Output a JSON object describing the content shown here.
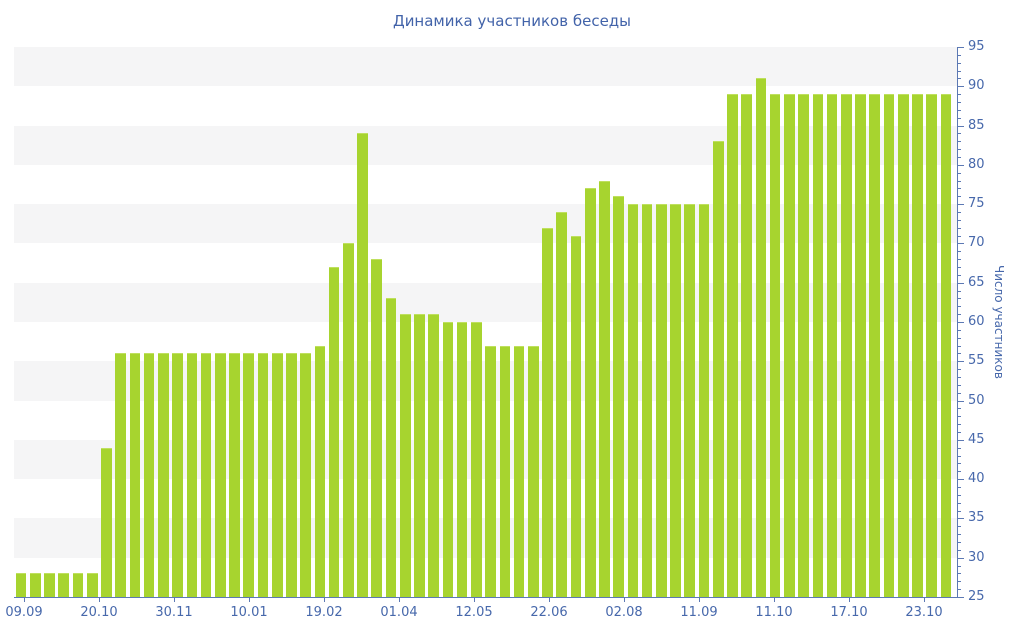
{
  "chart_data": {
    "type": "bar",
    "title": "Динамика участников беседы",
    "xlabel": "",
    "ylabel": "Число участников",
    "ylim": [
      25,
      95
    ],
    "y_major_tick_step": 5,
    "y_minor_tick_step": 1,
    "y_ticks": [
      25,
      30,
      35,
      40,
      45,
      50,
      55,
      60,
      65,
      70,
      75,
      80,
      85,
      90,
      95
    ],
    "grid": "alternating horizontal bands",
    "legend": "none",
    "x_tick_labels": [
      "09.09",
      "20.10",
      "30.11",
      "10.01",
      "19.02",
      "01.04",
      "12.05",
      "22.06",
      "02.08",
      "11.09",
      "11.10",
      "17.10",
      "23.10"
    ],
    "values": [
      28,
      28,
      28,
      28,
      28,
      28,
      44,
      56,
      56,
      56,
      56,
      56,
      56,
      56,
      56,
      56,
      56,
      56,
      56,
      56,
      56,
      57,
      67,
      70,
      84,
      68,
      63,
      61,
      61,
      61,
      60,
      60,
      60,
      57,
      57,
      57,
      57,
      72,
      74,
      71,
      77,
      78,
      76,
      75,
      75,
      75,
      75,
      75,
      75,
      83,
      89,
      89,
      91,
      89,
      89,
      89,
      89,
      89,
      89,
      89,
      89,
      89,
      89,
      89,
      89,
      89
    ],
    "colors": {
      "bar": "#a7d42f",
      "bar_edge": "#bfe05e",
      "axis_line": "#5c79b4",
      "tick_label": "#4768ab",
      "title": "#4263a9",
      "band": "#f5f5f6",
      "background": "#ffffff"
    }
  }
}
